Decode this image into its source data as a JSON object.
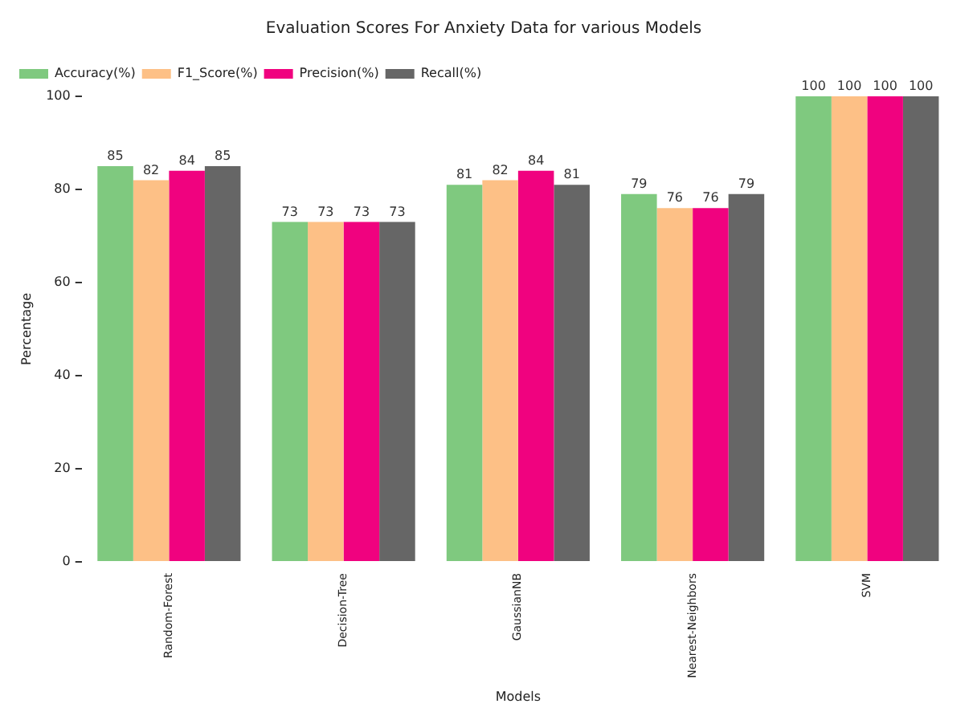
{
  "chart_data": {
    "type": "bar",
    "title": "Evaluation Scores For Anxiety Data for various Models",
    "xlabel": "Models",
    "ylabel": "Percentage",
    "categories": [
      "Random-Forest",
      "Decision-Tree",
      "GaussianNB",
      "Nearest-Neighbors",
      "SVM"
    ],
    "series": [
      {
        "name": "Accuracy(%)",
        "color": "#7fc97f",
        "values": [
          85,
          73,
          81,
          79,
          100
        ]
      },
      {
        "name": "F1_Score(%)",
        "color": "#fdc086",
        "values": [
          82,
          73,
          82,
          76,
          100
        ]
      },
      {
        "name": "Precision(%)",
        "color": "#f0027f",
        "values": [
          84,
          73,
          84,
          76,
          100
        ]
      },
      {
        "name": "Recall(%)",
        "color": "#666666",
        "values": [
          85,
          73,
          81,
          79,
          100
        ]
      }
    ],
    "ylim": [
      0,
      100
    ],
    "yticks": [
      0,
      20,
      40,
      60,
      80,
      100
    ],
    "grid": false,
    "legend": "top left",
    "data_labels": true
  }
}
